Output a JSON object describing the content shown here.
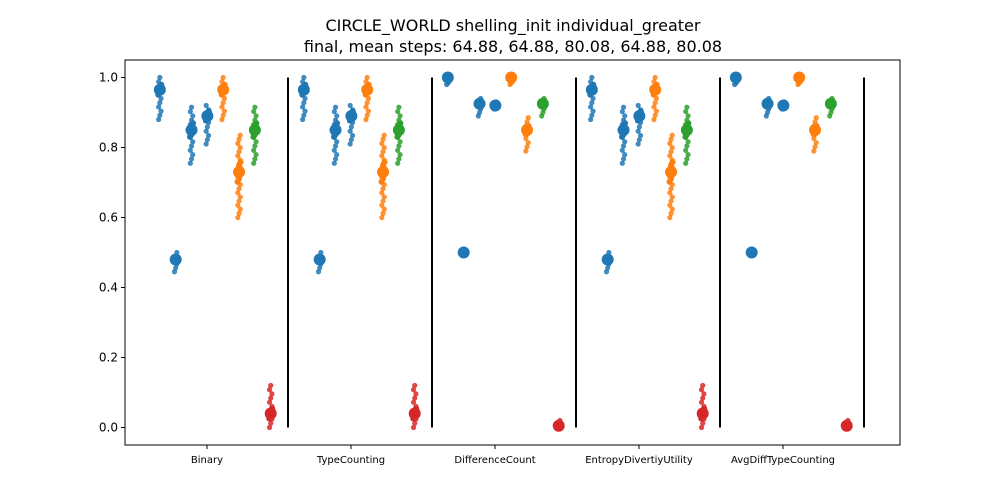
{
  "chart_data": {
    "type": "scatter",
    "title": "CIRCLE_WORLD shelling_init individual_greater",
    "subtitle": "final, mean steps: 64.88, 64.88, 80.08, 64.88, 80.08",
    "xlabel": "",
    "ylabel": "",
    "ylim": [
      -0.05,
      1.05
    ],
    "yticks": [
      "0.0",
      "0.2",
      "0.4",
      "0.6",
      "0.8",
      "1.0"
    ],
    "grid": false,
    "categories": [
      "Binary",
      "TypeCounting",
      "DifferenceCount",
      "EntropyDivertiyUtility",
      "AvgDiffTypeCounting"
    ],
    "colors": {
      "blue": "#1f77b4",
      "orange": "#ff7f0e",
      "green": "#2ca02c",
      "red": "#d62728",
      "separator": "#000000"
    },
    "groups": [
      {
        "category": "Binary",
        "points": [
          {
            "x": 0.11,
            "color": "blue",
            "mean": 0.965,
            "min": 0.88,
            "max": 1.0
          },
          {
            "x": 0.22,
            "color": "blue",
            "mean": 0.48,
            "min": 0.445,
            "max": 0.5
          },
          {
            "x": 0.33,
            "color": "blue",
            "mean": 0.85,
            "min": 0.755,
            "max": 0.915
          },
          {
            "x": 0.44,
            "color": "blue",
            "mean": 0.89,
            "min": 0.81,
            "max": 0.92
          },
          {
            "x": 0.55,
            "color": "orange",
            "mean": 0.965,
            "min": 0.88,
            "max": 1.0
          },
          {
            "x": 0.66,
            "color": "orange",
            "mean": 0.73,
            "min": 0.6,
            "max": 0.835
          },
          {
            "x": 0.77,
            "color": "green",
            "mean": 0.85,
            "min": 0.755,
            "max": 0.915
          },
          {
            "x": 0.88,
            "color": "red",
            "mean": 0.04,
            "min": 0.0,
            "max": 0.12
          }
        ]
      },
      {
        "category": "TypeCounting",
        "points": [
          {
            "x": 0.11,
            "color": "blue",
            "mean": 0.965,
            "min": 0.88,
            "max": 1.0
          },
          {
            "x": 0.22,
            "color": "blue",
            "mean": 0.48,
            "min": 0.445,
            "max": 0.5
          },
          {
            "x": 0.33,
            "color": "blue",
            "mean": 0.85,
            "min": 0.755,
            "max": 0.915
          },
          {
            "x": 0.44,
            "color": "blue",
            "mean": 0.89,
            "min": 0.81,
            "max": 0.92
          },
          {
            "x": 0.55,
            "color": "orange",
            "mean": 0.965,
            "min": 0.88,
            "max": 1.0
          },
          {
            "x": 0.66,
            "color": "orange",
            "mean": 0.73,
            "min": 0.6,
            "max": 0.835
          },
          {
            "x": 0.77,
            "color": "green",
            "mean": 0.85,
            "min": 0.755,
            "max": 0.915
          },
          {
            "x": 0.88,
            "color": "red",
            "mean": 0.04,
            "min": 0.0,
            "max": 0.12
          }
        ]
      },
      {
        "category": "DifferenceCount",
        "points": [
          {
            "x": 0.11,
            "color": "blue",
            "mean": 1.0,
            "min": 0.98,
            "max": 1.0
          },
          {
            "x": 0.22,
            "color": "blue",
            "mean": 0.5,
            "min": 0.5,
            "max": 0.5
          },
          {
            "x": 0.33,
            "color": "blue",
            "mean": 0.925,
            "min": 0.89,
            "max": 0.94
          },
          {
            "x": 0.44,
            "color": "blue",
            "mean": 0.92,
            "min": 0.91,
            "max": 0.93
          },
          {
            "x": 0.55,
            "color": "orange",
            "mean": 1.0,
            "min": 0.98,
            "max": 1.0
          },
          {
            "x": 0.66,
            "color": "orange",
            "mean": 0.85,
            "min": 0.79,
            "max": 0.885
          },
          {
            "x": 0.77,
            "color": "green",
            "mean": 0.925,
            "min": 0.89,
            "max": 0.94
          },
          {
            "x": 0.88,
            "color": "red",
            "mean": 0.005,
            "min": 0.0,
            "max": 0.02
          }
        ]
      },
      {
        "category": "EntropyDivertiyUtility",
        "points": [
          {
            "x": 0.11,
            "color": "blue",
            "mean": 0.965,
            "min": 0.88,
            "max": 1.0
          },
          {
            "x": 0.22,
            "color": "blue",
            "mean": 0.48,
            "min": 0.445,
            "max": 0.5
          },
          {
            "x": 0.33,
            "color": "blue",
            "mean": 0.85,
            "min": 0.755,
            "max": 0.915
          },
          {
            "x": 0.44,
            "color": "blue",
            "mean": 0.89,
            "min": 0.81,
            "max": 0.92
          },
          {
            "x": 0.55,
            "color": "orange",
            "mean": 0.965,
            "min": 0.88,
            "max": 1.0
          },
          {
            "x": 0.66,
            "color": "orange",
            "mean": 0.73,
            "min": 0.6,
            "max": 0.835
          },
          {
            "x": 0.77,
            "color": "green",
            "mean": 0.85,
            "min": 0.755,
            "max": 0.915
          },
          {
            "x": 0.88,
            "color": "red",
            "mean": 0.04,
            "min": 0.0,
            "max": 0.12
          }
        ]
      },
      {
        "category": "AvgDiffTypeCounting",
        "points": [
          {
            "x": 0.11,
            "color": "blue",
            "mean": 1.0,
            "min": 0.98,
            "max": 1.0
          },
          {
            "x": 0.22,
            "color": "blue",
            "mean": 0.5,
            "min": 0.5,
            "max": 0.5
          },
          {
            "x": 0.33,
            "color": "blue",
            "mean": 0.925,
            "min": 0.89,
            "max": 0.94
          },
          {
            "x": 0.44,
            "color": "blue",
            "mean": 0.92,
            "min": 0.91,
            "max": 0.93
          },
          {
            "x": 0.55,
            "color": "orange",
            "mean": 1.0,
            "min": 0.98,
            "max": 1.0
          },
          {
            "x": 0.66,
            "color": "orange",
            "mean": 0.85,
            "min": 0.79,
            "max": 0.885
          },
          {
            "x": 0.77,
            "color": "green",
            "mean": 0.925,
            "min": 0.89,
            "max": 0.94
          },
          {
            "x": 0.88,
            "color": "red",
            "mean": 0.005,
            "min": 0.0,
            "max": 0.02
          }
        ]
      }
    ]
  }
}
